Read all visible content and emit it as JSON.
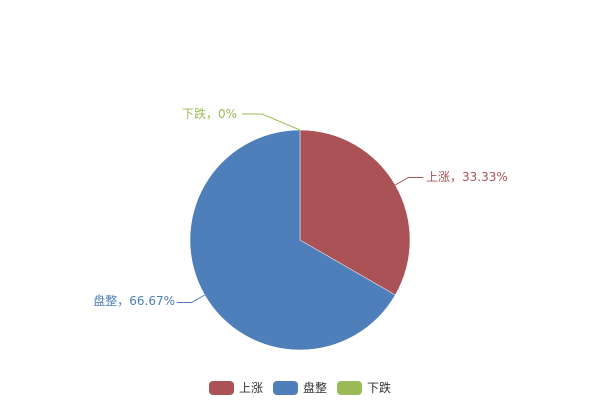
{
  "chart_data": {
    "type": "pie",
    "categories": [
      "上涨",
      "盘整",
      "下跌"
    ],
    "values": [
      1,
      2,
      0
    ],
    "percent_labels": [
      "上涨，33.33%",
      "盘整，66.67%",
      "下跌，0%"
    ],
    "colors": [
      "#ab5256",
      "#4e7fbb",
      "#9bbb59"
    ],
    "legend": {
      "placement": "bottom",
      "items": [
        "上涨",
        "盘整",
        "下跌"
      ]
    }
  }
}
